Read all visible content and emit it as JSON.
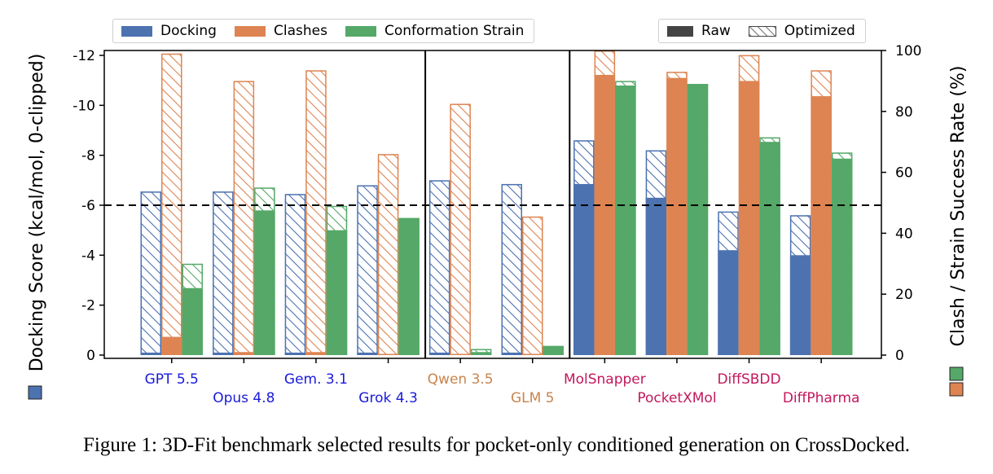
{
  "chart_data": {
    "type": "bar",
    "title": "",
    "ylabel_left": "Docking Score (kcal/mol, 0-clipped)",
    "ylabel_right": "Clash / Strain Success Rate (%)",
    "left_axis": {
      "ylim": [
        0,
        -12.3
      ],
      "ticks": [
        0,
        -2,
        -4,
        -6,
        -8,
        -10,
        -12
      ],
      "tick_labels": [
        "0",
        "-2",
        "-4",
        "-6",
        "-8",
        "-10",
        "-12"
      ],
      "reference_line": -6
    },
    "right_axis": {
      "ylim": [
        0,
        100
      ],
      "ticks": [
        0,
        20,
        40,
        60,
        80,
        100
      ],
      "tick_labels": [
        "0",
        "20",
        "40",
        "60",
        "80",
        "100"
      ]
    },
    "series": [
      {
        "name": "Docking",
        "axis": "left",
        "color": "#4c72b0"
      },
      {
        "name": "Clashes",
        "axis": "right",
        "color": "#dd8452"
      },
      {
        "name": "Conformation Strain",
        "axis": "right",
        "color": "#55a868"
      }
    ],
    "styles": [
      {
        "name": "Raw",
        "fill": "solid"
      },
      {
        "name": "Optimized",
        "fill": "hatched"
      }
    ],
    "groups": [
      {
        "name": "GPT 5.5",
        "label_color": "#1a1adb",
        "row": 0,
        "docking": {
          "raw": -0.1,
          "optimized": -6.55
        },
        "clashes": {
          "raw": 6,
          "optimized": 99
        },
        "strain": {
          "raw": 22,
          "optimized": 30
        }
      },
      {
        "name": "Opus 4.8",
        "label_color": "#1a1adb",
        "row": 1,
        "docking": {
          "raw": -0.1,
          "optimized": -6.55
        },
        "clashes": {
          "raw": 1,
          "optimized": 90
        },
        "strain": {
          "raw": 47.5,
          "optimized": 55
        }
      },
      {
        "name": "Gem. 3.1",
        "label_color": "#1a1adb",
        "row": 0,
        "docking": {
          "raw": -0.1,
          "optimized": -6.45
        },
        "clashes": {
          "raw": 1,
          "optimized": 93.5
        },
        "strain": {
          "raw": 41,
          "optimized": 49
        }
      },
      {
        "name": "Grok 4.3",
        "label_color": "#1a1adb",
        "row": 1,
        "docking": {
          "raw": -0.1,
          "optimized": -6.8
        },
        "clashes": {
          "raw": 0,
          "optimized": 66
        },
        "strain": {
          "raw": 45,
          "optimized": 45
        }
      },
      {
        "name": "Qwen 3.5",
        "label_color": "#c8844e",
        "row": 0,
        "docking": {
          "raw": -0.1,
          "optimized": -7.0
        },
        "clashes": {
          "raw": 0,
          "optimized": 82.5
        },
        "strain": {
          "raw": 1,
          "optimized": 2
        }
      },
      {
        "name": "GLM 5",
        "label_color": "#c8844e",
        "row": 1,
        "docking": {
          "raw": -0.1,
          "optimized": -6.85
        },
        "clashes": {
          "raw": 0,
          "optimized": 45.5
        },
        "strain": {
          "raw": 3,
          "optimized": 3
        }
      },
      {
        "name": "MolSnapper",
        "label_color": "#c2185b",
        "row": 0,
        "docking": {
          "raw": -6.85,
          "optimized": -8.6
        },
        "clashes": {
          "raw": 92,
          "optimized": 100
        },
        "strain": {
          "raw": 88.5,
          "optimized": 90
        }
      },
      {
        "name": "PocketXMol",
        "label_color": "#c2185b",
        "row": 1,
        "docking": {
          "raw": -6.3,
          "optimized": -8.2
        },
        "clashes": {
          "raw": 91,
          "optimized": 93
        },
        "strain": {
          "raw": 89,
          "optimized": 89
        }
      },
      {
        "name": "DiffSBDD",
        "label_color": "#c2185b",
        "row": 0,
        "docking": {
          "raw": -4.2,
          "optimized": -5.75
        },
        "clashes": {
          "raw": 90,
          "optimized": 98.5
        },
        "strain": {
          "raw": 70,
          "optimized": 71.5
        }
      },
      {
        "name": "DiffPharma",
        "label_color": "#c2185b",
        "row": 1,
        "docking": {
          "raw": -4.0,
          "optimized": -5.6
        },
        "clashes": {
          "raw": 85,
          "optimized": 93.5
        },
        "strain": {
          "raw": 64.5,
          "optimized": 66.5
        }
      }
    ],
    "section_dividers_after_group": [
      3,
      5
    ],
    "legend_placement": "top"
  },
  "legend_series": {
    "docking": "Docking",
    "clashes": "Clashes",
    "strain": "Conformation Strain"
  },
  "legend_styles": {
    "raw": "Raw",
    "optimized": "Optimized"
  },
  "caption": "Figure 1: 3D-Fit benchmark selected results for pocket-only conditioned generation on CrossDocked."
}
